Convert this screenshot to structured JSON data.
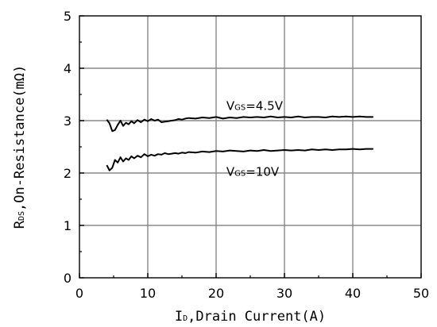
{
  "chart_data": {
    "type": "line",
    "x": [
      4.0,
      4.4,
      4.8,
      5.2,
      5.6,
      6.0,
      6.4,
      6.8,
      7.2,
      7.6,
      8.0,
      8.5,
      9.0,
      9.5,
      10.0,
      10.5,
      11.0,
      11.5,
      12.0,
      12.5,
      13.0,
      13.5,
      14.0,
      14.5,
      15.0,
      15.5,
      16.0,
      17.0,
      18.0,
      19.0,
      20.0,
      21.0,
      22.0,
      23.0,
      24.0,
      25.0,
      26.0,
      27.0,
      28.0,
      29.0,
      30.0,
      31.0,
      32.0,
      33.0,
      34.0,
      35.0,
      36.0,
      37.0,
      38.0,
      39.0,
      40.0,
      41.0,
      42.0,
      43.0
    ],
    "series": [
      {
        "name": "V_GS=4.5V",
        "values": [
          3.02,
          2.95,
          2.8,
          2.82,
          2.92,
          3.0,
          2.9,
          2.96,
          2.93,
          2.99,
          2.95,
          3.01,
          2.97,
          3.02,
          2.99,
          3.03,
          3.0,
          3.02,
          2.97,
          2.98,
          2.99,
          3.0,
          3.01,
          3.03,
          3.02,
          3.04,
          3.05,
          3.04,
          3.06,
          3.05,
          3.07,
          3.04,
          3.06,
          3.05,
          3.07,
          3.06,
          3.07,
          3.06,
          3.08,
          3.06,
          3.07,
          3.06,
          3.08,
          3.06,
          3.07,
          3.07,
          3.06,
          3.08,
          3.07,
          3.08,
          3.07,
          3.08,
          3.07,
          3.07
        ]
      },
      {
        "name": "V_GS=10V",
        "values": [
          2.15,
          2.05,
          2.1,
          2.25,
          2.2,
          2.3,
          2.22,
          2.28,
          2.25,
          2.32,
          2.28,
          2.33,
          2.3,
          2.36,
          2.32,
          2.35,
          2.33,
          2.36,
          2.35,
          2.38,
          2.36,
          2.37,
          2.38,
          2.37,
          2.39,
          2.38,
          2.4,
          2.39,
          2.41,
          2.4,
          2.42,
          2.41,
          2.43,
          2.42,
          2.41,
          2.43,
          2.42,
          2.44,
          2.42,
          2.43,
          2.44,
          2.43,
          2.44,
          2.43,
          2.45,
          2.44,
          2.45,
          2.44,
          2.45,
          2.45,
          2.46,
          2.45,
          2.46,
          2.46
        ]
      }
    ],
    "xlim": [
      0,
      50
    ],
    "ylim": [
      0,
      5
    ],
    "xticks": [
      "0",
      "10",
      "20",
      "30",
      "40",
      "50"
    ],
    "yticks": [
      "0",
      "1",
      "2",
      "3",
      "4",
      "5"
    ],
    "xlabel": {
      "main": "I",
      "sub": "D",
      "rest": ",Drain Current(A)"
    },
    "ylabel": {
      "main": "R",
      "sub": "DS",
      "rest": ",On-Resistance(mΩ)"
    },
    "annotations": [
      {
        "main": "V",
        "sub": "GS",
        "rest": "=4.5V",
        "x": 21.5,
        "y": 3.28
      },
      {
        "main": "V",
        "sub": "GS",
        "rest": "=10V",
        "x": 21.5,
        "y": 2.02
      }
    ],
    "grid": true,
    "legend": "none"
  }
}
